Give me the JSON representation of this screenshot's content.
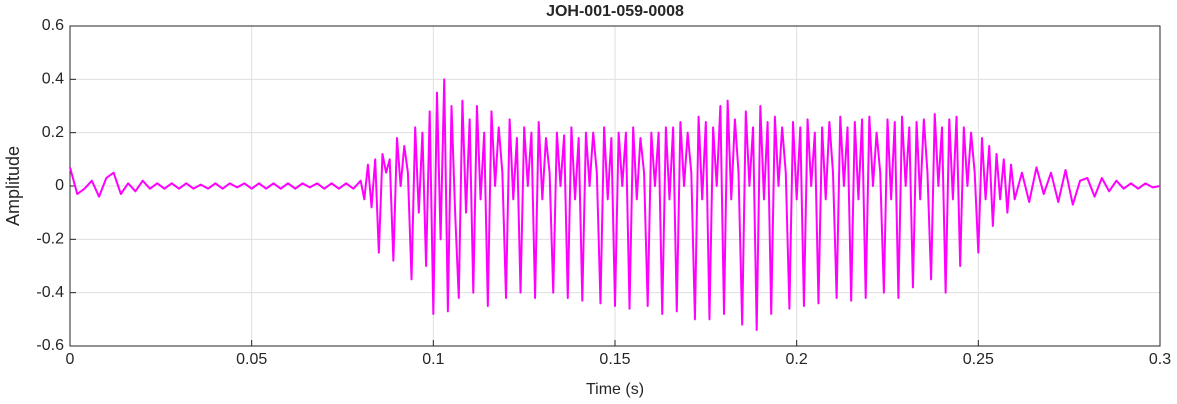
{
  "chart_data": {
    "type": "line",
    "title": "JOH-001-059-0008",
    "x_label": "Time (s)",
    "y_label": "Amplitude",
    "xlim": [
      0,
      0.3
    ],
    "ylim": [
      -0.6,
      0.6
    ],
    "xticks": [
      0,
      0.05,
      0.1,
      0.15,
      0.2,
      0.25,
      0.3
    ],
    "yticks": [
      -0.6,
      -0.4,
      -0.2,
      0,
      0.2,
      0.4,
      0.6
    ],
    "grid": true,
    "x": [
      0,
      0.002,
      0.004,
      0.006,
      0.008,
      0.01,
      0.012,
      0.014,
      0.016,
      0.018,
      0.02,
      0.022,
      0.024,
      0.026,
      0.028,
      0.03,
      0.032,
      0.034,
      0.036,
      0.038,
      0.04,
      0.042,
      0.044,
      0.046,
      0.048,
      0.05,
      0.052,
      0.054,
      0.056,
      0.058,
      0.06,
      0.062,
      0.064,
      0.066,
      0.068,
      0.07,
      0.072,
      0.074,
      0.076,
      0.078,
      0.08,
      0.081,
      0.082,
      0.083,
      0.084,
      0.085,
      0.086,
      0.087,
      0.088,
      0.089,
      0.09,
      0.091,
      0.092,
      0.093,
      0.094,
      0.095,
      0.096,
      0.097,
      0.098,
      0.099,
      0.1,
      0.101,
      0.102,
      0.103,
      0.104,
      0.105,
      0.106,
      0.107,
      0.108,
      0.109,
      0.11,
      0.111,
      0.112,
      0.113,
      0.114,
      0.115,
      0.116,
      0.117,
      0.118,
      0.119,
      0.12,
      0.121,
      0.122,
      0.123,
      0.124,
      0.125,
      0.126,
      0.127,
      0.128,
      0.129,
      0.13,
      0.131,
      0.132,
      0.133,
      0.134,
      0.135,
      0.136,
      0.137,
      0.138,
      0.139,
      0.14,
      0.141,
      0.142,
      0.143,
      0.144,
      0.145,
      0.146,
      0.147,
      0.148,
      0.149,
      0.15,
      0.151,
      0.152,
      0.153,
      0.154,
      0.155,
      0.156,
      0.157,
      0.158,
      0.159,
      0.16,
      0.161,
      0.162,
      0.163,
      0.164,
      0.165,
      0.166,
      0.167,
      0.168,
      0.169,
      0.17,
      0.171,
      0.172,
      0.173,
      0.174,
      0.175,
      0.176,
      0.177,
      0.178,
      0.179,
      0.18,
      0.181,
      0.182,
      0.183,
      0.184,
      0.185,
      0.186,
      0.187,
      0.188,
      0.189,
      0.19,
      0.191,
      0.192,
      0.193,
      0.194,
      0.195,
      0.196,
      0.197,
      0.198,
      0.199,
      0.2,
      0.201,
      0.202,
      0.203,
      0.204,
      0.205,
      0.206,
      0.207,
      0.208,
      0.209,
      0.21,
      0.211,
      0.212,
      0.213,
      0.214,
      0.215,
      0.216,
      0.217,
      0.218,
      0.219,
      0.22,
      0.221,
      0.222,
      0.223,
      0.224,
      0.225,
      0.226,
      0.227,
      0.228,
      0.229,
      0.23,
      0.231,
      0.232,
      0.233,
      0.234,
      0.235,
      0.236,
      0.237,
      0.238,
      0.239,
      0.24,
      0.241,
      0.242,
      0.243,
      0.244,
      0.245,
      0.246,
      0.247,
      0.248,
      0.249,
      0.25,
      0.251,
      0.252,
      0.253,
      0.254,
      0.255,
      0.256,
      0.257,
      0.258,
      0.259,
      0.26,
      0.262,
      0.264,
      0.266,
      0.268,
      0.27,
      0.272,
      0.274,
      0.276,
      0.278,
      0.28,
      0.282,
      0.284,
      0.286,
      0.288,
      0.29,
      0.292,
      0.294,
      0.296,
      0.298,
      0.3
    ],
    "series": [
      {
        "name": "Amplitude",
        "color": "#ff00ff",
        "values": [
          0.07,
          -0.03,
          -0.01,
          0.02,
          -0.04,
          0.03,
          0.05,
          -0.03,
          0.01,
          -0.02,
          0.02,
          -0.01,
          0.01,
          -0.01,
          0.01,
          -0.01,
          0.01,
          -0.01,
          0.005,
          -0.01,
          0.01,
          -0.01,
          0.01,
          -0.005,
          0.01,
          -0.01,
          0.01,
          -0.01,
          0.01,
          -0.01,
          0.01,
          -0.01,
          0.01,
          -0.005,
          0.01,
          -0.01,
          0.01,
          -0.01,
          0.01,
          -0.01,
          0.02,
          -0.05,
          0.08,
          -0.08,
          0.1,
          -0.25,
          0.12,
          0.05,
          0.1,
          -0.28,
          0.18,
          0.0,
          0.15,
          0.05,
          -0.35,
          0.22,
          -0.1,
          0.2,
          -0.3,
          0.28,
          -0.48,
          0.35,
          -0.2,
          0.4,
          -0.47,
          0.3,
          -0.1,
          -0.42,
          0.32,
          -0.1,
          0.25,
          -0.4,
          0.3,
          -0.05,
          0.2,
          -0.45,
          0.28,
          0.0,
          0.22,
          0.05,
          -0.42,
          0.25,
          -0.05,
          0.18,
          -0.4,
          0.22,
          0.0,
          0.2,
          -0.42,
          0.24,
          -0.05,
          0.18,
          0.05,
          -0.4,
          0.2,
          0.0,
          0.19,
          -0.42,
          0.22,
          -0.05,
          0.18,
          -0.43,
          0.2,
          0.0,
          0.2,
          0.05,
          -0.44,
          0.22,
          -0.05,
          0.18,
          -0.45,
          0.2,
          0.0,
          0.2,
          -0.46,
          0.22,
          -0.05,
          0.18,
          0.05,
          -0.45,
          0.2,
          0.0,
          0.2,
          -0.48,
          0.22,
          -0.05,
          0.22,
          -0.47,
          0.24,
          0.0,
          0.2,
          0.05,
          -0.5,
          0.26,
          -0.05,
          0.24,
          -0.5,
          0.22,
          0.0,
          0.3,
          -0.48,
          0.32,
          -0.05,
          0.25,
          0.05,
          -0.52,
          0.28,
          0.0,
          0.22,
          -0.54,
          0.3,
          -0.05,
          0.24,
          -0.48,
          0.26,
          0.0,
          0.22,
          0.05,
          -0.46,
          0.24,
          -0.05,
          0.22,
          -0.45,
          0.25,
          0.0,
          0.2,
          -0.44,
          0.22,
          -0.05,
          0.24,
          0.05,
          -0.42,
          0.26,
          0.0,
          0.22,
          -0.43,
          0.24,
          -0.05,
          0.25,
          -0.42,
          0.26,
          0.0,
          0.2,
          0.05,
          -0.4,
          0.25,
          -0.05,
          0.24,
          -0.42,
          0.26,
          0.0,
          0.22,
          -0.38,
          0.24,
          -0.05,
          0.25,
          0.05,
          -0.35,
          0.27,
          0.0,
          0.22,
          -0.4,
          0.25,
          -0.05,
          0.26,
          -0.3,
          0.22,
          0.0,
          0.2,
          0.05,
          -0.25,
          0.18,
          -0.05,
          0.15,
          -0.15,
          0.12,
          -0.05,
          0.1,
          -0.1,
          0.08,
          -0.05,
          0.05,
          -0.06,
          0.07,
          -0.03,
          0.05,
          -0.06,
          0.06,
          -0.07,
          0.02,
          0.03,
          -0.04,
          0.03,
          -0.02,
          0.02,
          -0.01,
          0.01,
          -0.01,
          0.01,
          -0.005,
          0.0
        ]
      }
    ]
  }
}
